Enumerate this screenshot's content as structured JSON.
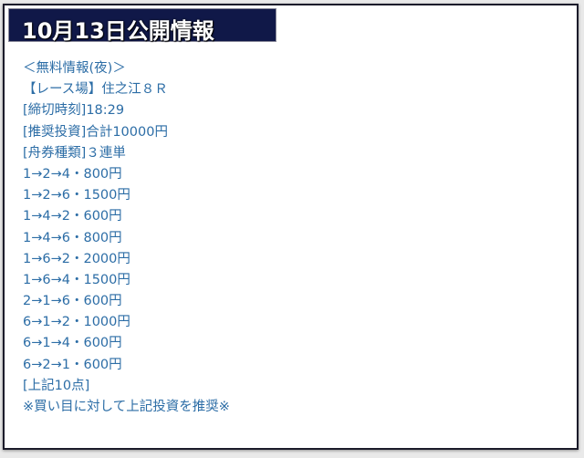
{
  "header": {
    "title": "10月13日公開情報"
  },
  "lines": [
    "＜無料情報(夜)＞",
    "【レース場】住之江８Ｒ",
    "[締切時刻]18:29",
    "[推奨投資]合計10000円",
    "[舟券種類]３連単",
    "1→2→4・800円",
    "1→2→6・1500円",
    "1→4→2・600円",
    "1→4→6・800円",
    "1→6→2・2000円",
    "1→6→4・1500円",
    "2→1→6・600円",
    "6→1→2・1000円",
    "6→1→4・600円",
    "6→2→1・600円",
    "[上記10点]",
    "※買い目に対して上記投資を推奨※"
  ],
  "colors": {
    "header_bg": "#101848",
    "text": "#2c6da6"
  }
}
